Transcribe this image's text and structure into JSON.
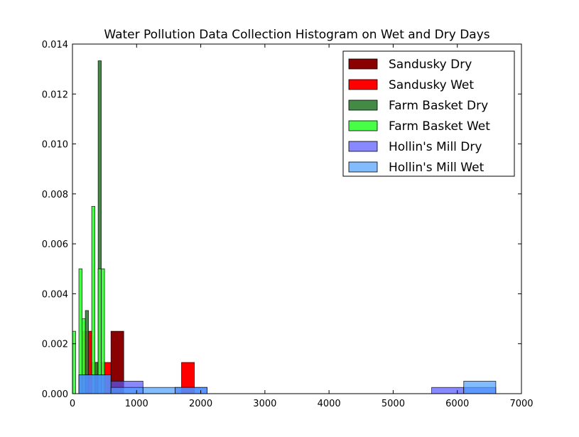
{
  "chart_data": {
    "type": "bar",
    "title": "Water Pollution Data Collection Histogram on Wet and Dry Days",
    "xlabel": "",
    "ylabel": "",
    "xlim": [
      0,
      7000
    ],
    "ylim": [
      0,
      0.014
    ],
    "xticks": [
      "0",
      "1000",
      "2000",
      "3000",
      "4000",
      "5000",
      "6000",
      "7000"
    ],
    "yticks": [
      "0.000",
      "0.002",
      "0.004",
      "0.006",
      "0.008",
      "0.010",
      "0.012",
      "0.014"
    ],
    "legend_position": "top-right",
    "series": [
      {
        "name": "Sandusky Dry",
        "color": "#8b0000",
        "opacity": 1.0,
        "bins": [
          {
            "x0": 600,
            "x1": 800,
            "density": 0.0025
          }
        ]
      },
      {
        "name": "Sandusky Wet",
        "color": "#ff0000",
        "opacity": 1.0,
        "bins": [
          {
            "x0": 150,
            "x1": 300,
            "density": 0.0025
          },
          {
            "x0": 300,
            "x1": 450,
            "density": 0.00125
          },
          {
            "x0": 450,
            "x1": 600,
            "density": 0.00125
          },
          {
            "x0": 1700,
            "x1": 1900,
            "density": 0.00125
          }
        ]
      },
      {
        "name": "Farm Basket Dry",
        "color": "#2e7d32",
        "opacity": 0.9,
        "bins": [
          {
            "x0": 200,
            "x1": 250,
            "density": 0.00333
          },
          {
            "x0": 350,
            "x1": 400,
            "density": 0.00125
          },
          {
            "x0": 400,
            "x1": 450,
            "density": 0.01333
          }
        ]
      },
      {
        "name": "Farm Basket Wet",
        "color": "#33ff33",
        "opacity": 0.9,
        "bins": [
          {
            "x0": 0,
            "x1": 50,
            "density": 0.0025
          },
          {
            "x0": 100,
            "x1": 150,
            "density": 0.005
          },
          {
            "x0": 150,
            "x1": 200,
            "density": 0.003
          },
          {
            "x0": 300,
            "x1": 350,
            "density": 0.0075
          },
          {
            "x0": 400,
            "x1": 450,
            "density": 0.005
          },
          {
            "x0": 450,
            "x1": 500,
            "density": 0.005
          }
        ]
      },
      {
        "name": "Hollin's Mill Dry",
        "color": "#5555ff",
        "opacity": 0.7,
        "bins": [
          {
            "x0": 100,
            "x1": 600,
            "density": 0.00075
          },
          {
            "x0": 600,
            "x1": 1100,
            "density": 0.0005
          },
          {
            "x0": 1600,
            "x1": 2100,
            "density": 0.00025
          },
          {
            "x0": 5600,
            "x1": 6100,
            "density": 0.00025
          },
          {
            "x0": 6100,
            "x1": 6600,
            "density": 0.00025
          }
        ]
      },
      {
        "name": "Hollin's Mill Wet",
        "color": "#4d9fff",
        "opacity": 0.7,
        "bins": [
          {
            "x0": 100,
            "x1": 600,
            "density": 0.00075
          },
          {
            "x0": 600,
            "x1": 1100,
            "density": 0.00025
          },
          {
            "x0": 1100,
            "x1": 1600,
            "density": 0.00025
          },
          {
            "x0": 1600,
            "x1": 2100,
            "density": 0.00025
          },
          {
            "x0": 6100,
            "x1": 6600,
            "density": 0.0005
          }
        ]
      }
    ]
  }
}
